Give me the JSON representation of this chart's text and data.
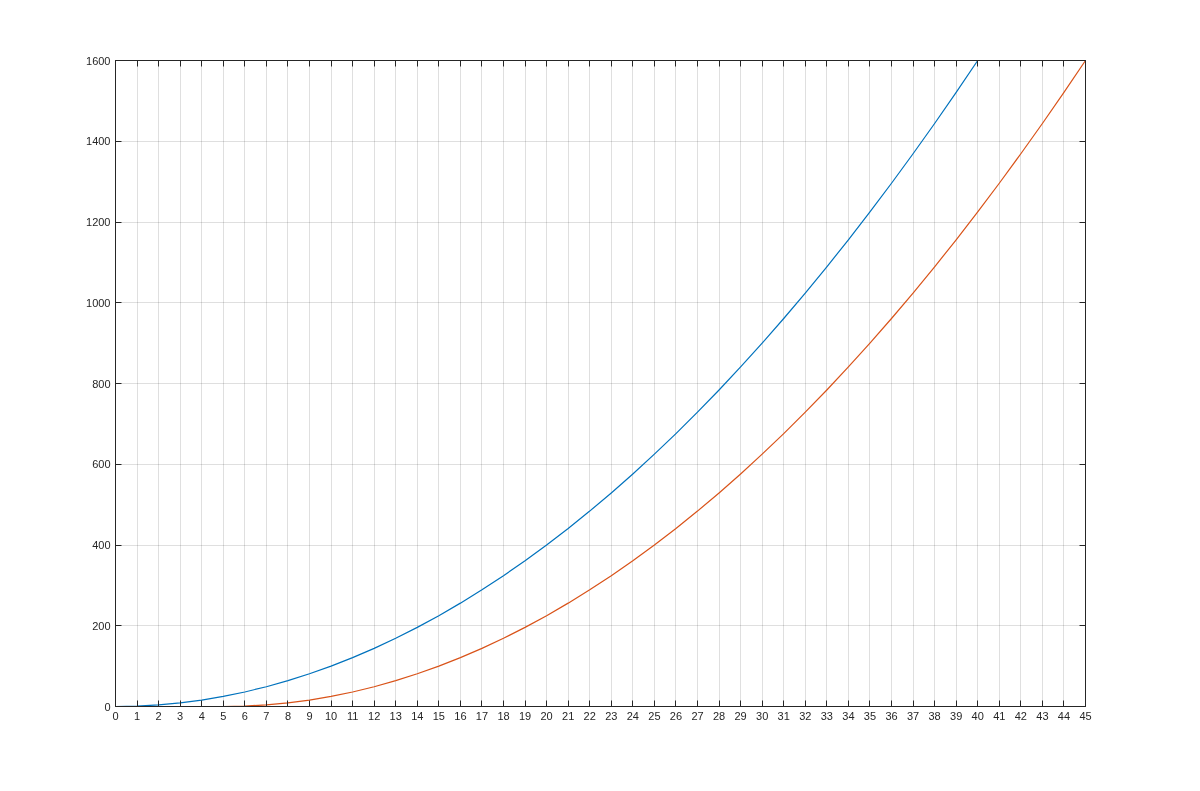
{
  "chart_data": {
    "type": "line",
    "xlim": [
      0,
      45
    ],
    "ylim": [
      0,
      1600
    ],
    "xticks": [
      0,
      1,
      2,
      3,
      4,
      5,
      6,
      7,
      8,
      9,
      10,
      11,
      12,
      13,
      14,
      15,
      16,
      17,
      18,
      19,
      20,
      21,
      22,
      23,
      24,
      25,
      26,
      27,
      28,
      29,
      30,
      31,
      32,
      33,
      34,
      35,
      36,
      37,
      38,
      39,
      40,
      41,
      42,
      43,
      44,
      45
    ],
    "yticks": [
      0,
      200,
      400,
      600,
      800,
      1000,
      1200,
      1400,
      1600
    ],
    "grid": true,
    "marker": "none",
    "line_style": "solid",
    "series": [
      {
        "color": "#0072bd",
        "x": [
          0,
          1,
          2,
          3,
          4,
          5,
          6,
          7,
          8,
          9,
          10,
          11,
          12,
          13,
          14,
          15,
          16,
          17,
          18,
          19,
          20,
          21,
          22,
          23,
          24,
          25,
          26,
          27,
          28,
          29,
          30,
          31,
          32,
          33,
          34,
          35,
          36,
          37,
          38,
          39,
          40
        ],
        "values": [
          0,
          1,
          4,
          9,
          16,
          25,
          36,
          49,
          64,
          81,
          100,
          121,
          144,
          169,
          196,
          225,
          256,
          289,
          324,
          361,
          400,
          441,
          484,
          529,
          576,
          625,
          676,
          729,
          784,
          841,
          900,
          961,
          1024,
          1089,
          1156,
          1225,
          1296,
          1369,
          1444,
          1521,
          1600
        ]
      },
      {
        "color": "#d95319",
        "x": [
          5,
          6,
          7,
          8,
          9,
          10,
          11,
          12,
          13,
          14,
          15,
          16,
          17,
          18,
          19,
          20,
          21,
          22,
          23,
          24,
          25,
          26,
          27,
          28,
          29,
          30,
          31,
          32,
          33,
          34,
          35,
          36,
          37,
          38,
          39,
          40,
          41,
          42,
          43,
          44,
          45
        ],
        "values": [
          0,
          1,
          4,
          9,
          16,
          25,
          36,
          49,
          64,
          81,
          100,
          121,
          144,
          169,
          196,
          225,
          256,
          289,
          324,
          361,
          400,
          441,
          484,
          529,
          576,
          625,
          676,
          729,
          784,
          841,
          900,
          961,
          1024,
          1089,
          1156,
          1225,
          1296,
          1369,
          1444,
          1521,
          1600
        ]
      }
    ]
  }
}
